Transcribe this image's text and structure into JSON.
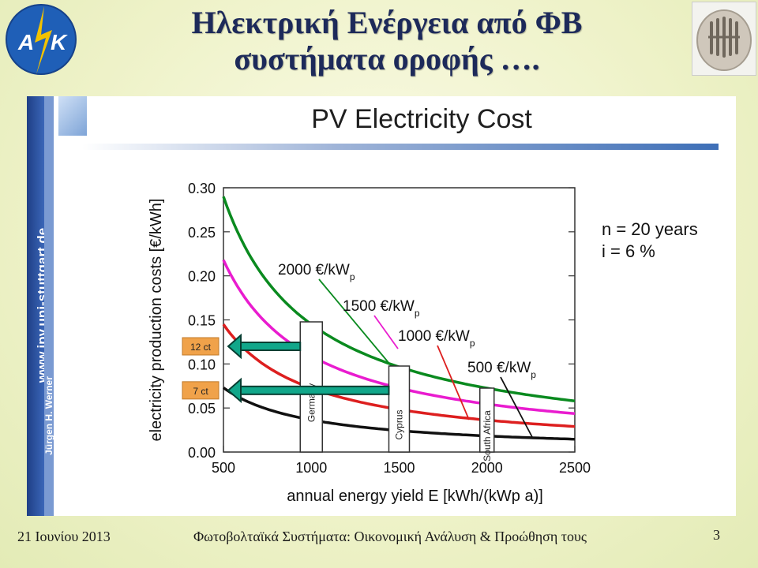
{
  "slide": {
    "title_line1": "Ηλεκτρική Ενέργεια από ΦΒ",
    "title_line2": "συστήματα οροφής ….",
    "logo_text": "ΑΤΚ",
    "footer_date": "21 Ιουνίου 2013",
    "footer_center": "Φωτοβολταϊκά Συστήματα: Οικονομική Ανάλυση & Προώθηση τους",
    "page_number": "3"
  },
  "panel": {
    "chart_title": "PV Electricity Cost",
    "sidebar_url": "www.ipv.uni-stuttgart.de",
    "sidebar_author": "Jürgen H. Werner"
  },
  "chart_data": {
    "type": "line",
    "title": "PV Electricity Cost",
    "xlabel": "annual energy yield E [kWh/(kWp a)]",
    "ylabel": "electricity production costs [€/kWh]",
    "xlim": [
      500,
      2500
    ],
    "ylim": [
      0.0,
      0.3
    ],
    "xticks": [
      "500",
      "1000",
      "1500",
      "2000",
      "2500"
    ],
    "yticks": [
      "0.00",
      "0.05",
      "0.10",
      "0.15",
      "0.20",
      "0.25",
      "0.30"
    ],
    "params": [
      "n = 20 years",
      "i = 6 %"
    ],
    "series": [
      {
        "name": "2000 €/kWp",
        "color": "#0a8a1f",
        "x": [
          500,
          700,
          1000,
          1500,
          2000,
          2500
        ],
        "y": [
          0.29,
          0.207,
          0.145,
          0.097,
          0.073,
          0.058
        ]
      },
      {
        "name": "1500 €/kWp",
        "color": "#e91ccf",
        "x": [
          500,
          700,
          1000,
          1500,
          2000,
          2500
        ],
        "y": [
          0.218,
          0.156,
          0.109,
          0.073,
          0.055,
          0.044
        ]
      },
      {
        "name": "1000 €/kWp",
        "color": "#dd1f1f",
        "x": [
          500,
          700,
          1000,
          1500,
          2000,
          2500
        ],
        "y": [
          0.145,
          0.104,
          0.073,
          0.048,
          0.036,
          0.029
        ]
      },
      {
        "name": "500 €/kWp",
        "color": "#111111",
        "x": [
          500,
          700,
          1000,
          1500,
          2000,
          2500
        ],
        "y": [
          0.073,
          0.052,
          0.036,
          0.024,
          0.018,
          0.015
        ]
      }
    ],
    "regions": [
      {
        "label": "Germany",
        "x": 1000
      },
      {
        "label": "Cyprus",
        "x": 1500
      },
      {
        "label": "South Africa",
        "x": 2000
      }
    ],
    "arrows": [
      {
        "label": "12 ct",
        "value": 0.12
      },
      {
        "label": "7 ct",
        "value": 0.07
      }
    ],
    "annotations": [
      {
        "text": "2000 €/kW",
        "sub": "p"
      },
      {
        "text": "1500 €/kW",
        "sub": "p"
      },
      {
        "text": "1000 €/kW",
        "sub": "p"
      },
      {
        "text": "500 €/kW",
        "sub": "p"
      }
    ]
  }
}
